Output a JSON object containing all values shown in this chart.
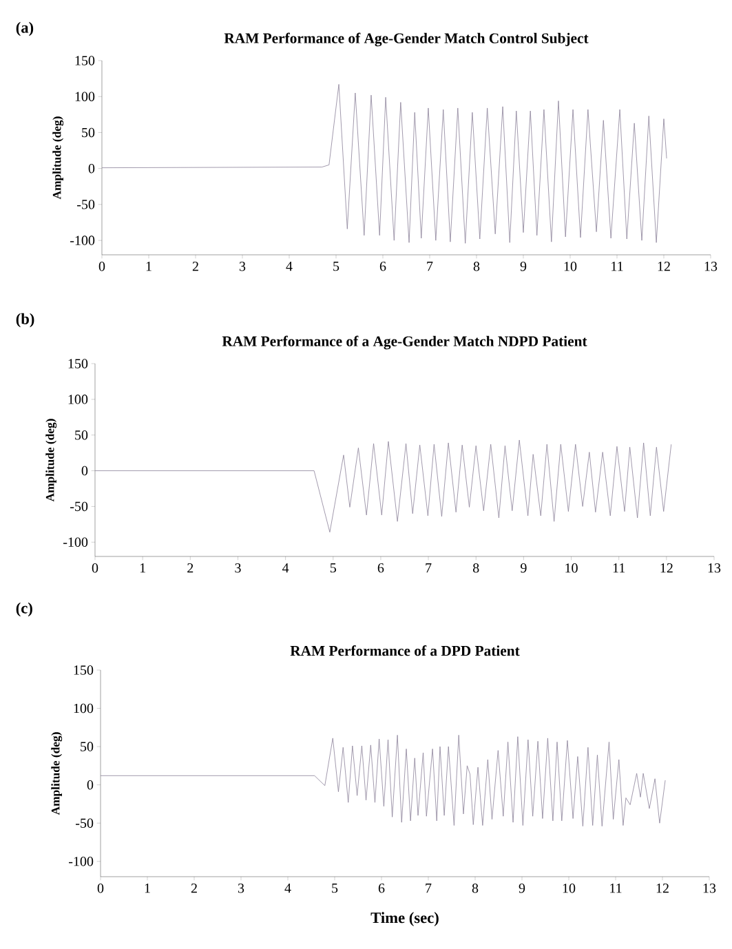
{
  "chart_data": [
    {
      "type": "line",
      "title": "RAM Performance of Age-Gender Match Control Subject",
      "ylabel": "Amplitude (deg)",
      "annotations": [
        "(a)"
      ],
      "xlim": [
        0,
        13
      ],
      "ylim": [
        -120,
        150
      ],
      "xticks": [
        0,
        1,
        2,
        3,
        4,
        5,
        6,
        7,
        8,
        9,
        10,
        11,
        12,
        13
      ],
      "yticks": [
        -100,
        -50,
        0,
        50,
        100,
        150
      ],
      "series": [
        {
          "color": "#8a8098",
          "x": [
            0,
            4.7,
            4.85,
            5.06,
            5.24,
            5.41,
            5.6,
            5.75,
            5.93,
            6.06,
            6.24,
            6.38,
            6.56,
            6.68,
            6.82,
            6.97,
            7.13,
            7.29,
            7.44,
            7.6,
            7.76,
            7.91,
            8.07,
            8.23,
            8.4,
            8.56,
            8.71,
            8.85,
            9.0,
            9.15,
            9.29,
            9.44,
            9.6,
            9.75,
            9.9,
            10.06,
            10.22,
            10.38,
            10.56,
            10.71,
            10.87,
            11.06,
            11.21,
            11.37,
            11.53,
            11.68,
            11.84,
            12.0,
            12.06
          ],
          "values": [
            1,
            2,
            5,
            117,
            -84,
            105,
            -93,
            102,
            -93,
            99,
            -100,
            92,
            -103,
            78,
            -97,
            84,
            -100,
            82,
            -102,
            84,
            -104,
            78,
            -98,
            84,
            -91,
            86,
            -103,
            80,
            -89,
            80,
            -93,
            82,
            -102,
            94,
            -95,
            82,
            -96,
            82,
            -88,
            67,
            -97,
            82,
            -98,
            63,
            -100,
            73,
            -103,
            69,
            14
          ]
        }
      ]
    },
    {
      "type": "line",
      "title": "RAM Performance of a Age-Gender Match NDPD Patient",
      "ylabel": "Amplitude (deg)",
      "annotations": [
        "(b)"
      ],
      "xlim": [
        0,
        13
      ],
      "ylim": [
        -120,
        150
      ],
      "xticks": [
        0,
        1,
        2,
        3,
        4,
        5,
        6,
        7,
        8,
        9,
        10,
        11,
        12,
        13
      ],
      "yticks": [
        -100,
        -50,
        0,
        50,
        100,
        150
      ],
      "series": [
        {
          "color": "#8a8098",
          "x": [
            0,
            4.6,
            4.93,
            5.22,
            5.35,
            5.53,
            5.7,
            5.85,
            6.02,
            6.16,
            6.35,
            6.53,
            6.67,
            6.82,
            6.99,
            7.12,
            7.28,
            7.42,
            7.58,
            7.71,
            7.86,
            8.0,
            8.16,
            8.31,
            8.48,
            8.61,
            8.76,
            8.91,
            9.09,
            9.2,
            9.36,
            9.49,
            9.64,
            9.78,
            9.94,
            10.09,
            10.24,
            10.38,
            10.51,
            10.66,
            10.82,
            10.96,
            11.12,
            11.23,
            11.39,
            11.52,
            11.66,
            11.79,
            11.94,
            12.1
          ],
          "values": [
            0,
            0,
            -86,
            22,
            -51,
            32,
            -62,
            38,
            -62,
            41,
            -71,
            38,
            -60,
            36,
            -63,
            37,
            -64,
            39,
            -58,
            36,
            -51,
            35,
            -56,
            37,
            -66,
            35,
            -56,
            43,
            -63,
            23,
            -63,
            37,
            -71,
            37,
            -57,
            37,
            -50,
            26,
            -58,
            26,
            -63,
            34,
            -57,
            33,
            -66,
            39,
            -63,
            33,
            -57,
            37
          ]
        }
      ]
    },
    {
      "type": "line",
      "title": "RAM Performance of a DPD Patient",
      "xlabel": "Time (sec)",
      "ylabel": "Amplitude (deg)",
      "annotations": [
        "(c)"
      ],
      "xlim": [
        0,
        13
      ],
      "ylim": [
        -120,
        150
      ],
      "xticks": [
        0,
        1,
        2,
        3,
        4,
        5,
        6,
        7,
        8,
        9,
        10,
        11,
        12,
        13
      ],
      "yticks": [
        -100,
        -50,
        0,
        50,
        100,
        150
      ],
      "series": [
        {
          "color": "#8a8098",
          "x": [
            0,
            4.57,
            4.79,
            4.96,
            5.08,
            5.18,
            5.29,
            5.38,
            5.48,
            5.58,
            5.67,
            5.77,
            5.86,
            5.95,
            6.05,
            6.14,
            6.23,
            6.34,
            6.43,
            6.53,
            6.62,
            6.71,
            6.78,
            6.89,
            6.96,
            7.09,
            7.18,
            7.25,
            7.34,
            7.43,
            7.55,
            7.65,
            7.75,
            7.83,
            7.89,
            7.96,
            8.06,
            8.16,
            8.27,
            8.36,
            8.49,
            8.6,
            8.7,
            8.81,
            8.91,
            9.02,
            9.13,
            9.23,
            9.34,
            9.44,
            9.55,
            9.66,
            9.75,
            9.85,
            9.97,
            10.09,
            10.19,
            10.3,
            10.41,
            10.51,
            10.61,
            10.71,
            10.86,
            10.95,
            11.07,
            11.16,
            11.22,
            11.31,
            11.45,
            11.53,
            11.59,
            11.72,
            11.84,
            11.94,
            12.06
          ],
          "values": [
            12,
            12,
            -1,
            61,
            -9,
            49,
            -23,
            51,
            -14,
            51,
            -20,
            52,
            -23,
            60,
            -28,
            59,
            -42,
            65,
            -49,
            47,
            -47,
            35,
            -40,
            42,
            -41,
            47,
            -47,
            50,
            -40,
            50,
            -53,
            65,
            -38,
            25,
            14,
            -52,
            23,
            -53,
            33,
            -45,
            45,
            -41,
            56,
            -49,
            63,
            -53,
            59,
            -41,
            57,
            -44,
            61,
            -47,
            56,
            -47,
            58,
            -44,
            37,
            -54,
            49,
            -53,
            39,
            -54,
            56,
            -45,
            33,
            -53,
            -17,
            -26,
            15,
            -16,
            15,
            -31,
            8,
            -50,
            6
          ]
        }
      ]
    }
  ]
}
